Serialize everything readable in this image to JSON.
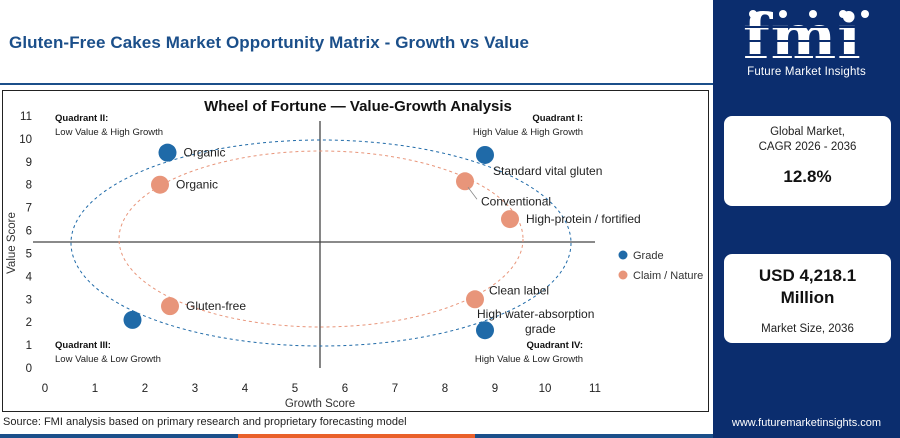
{
  "header": {
    "title": "Gluten-Free Cakes Market Opportunity Matrix - Growth vs Value"
  },
  "brand": {
    "logo_text": "fmi",
    "logo_sub": "Future Market Insights",
    "url": "www.futuremarketinsights.com",
    "color_navy": "#0b2d6e",
    "color_title": "#1b4f8a"
  },
  "side_panel": {
    "cagr_label_1": "Global Market,",
    "cagr_label_2": "CAGR 2026 - 2036",
    "cagr_value": "12.8%",
    "size_value_1": "USD 4,218.1",
    "size_value_2": "Million",
    "size_label": "Market Size, 2036"
  },
  "source": "Source: FMI analysis based on primary research and proprietary forecasting model",
  "chart_data": {
    "type": "scatter",
    "title": "Wheel of Fortune — Value-Growth Analysis",
    "xlabel": "Growth Score",
    "ylabel": "Value Score",
    "xlim": [
      0,
      11
    ],
    "ylim": [
      0,
      11
    ],
    "xticks": [
      "0",
      "1",
      "2",
      "3",
      "4",
      "5",
      "6",
      "7",
      "8",
      "9",
      "10",
      "11"
    ],
    "yticks": [
      "0",
      "1",
      "2",
      "3",
      "4",
      "5",
      "6",
      "7",
      "8",
      "9",
      "10",
      "11"
    ],
    "divider_x": 5.5,
    "divider_y": 5.5,
    "grid": false,
    "legend_position": "right",
    "quadrants": [
      {
        "name": "Quadrant II:",
        "desc": "Low Value & High Growth",
        "position": "top-left"
      },
      {
        "name": "Quadrant I:",
        "desc": "High Value & High Growth",
        "position": "top-right"
      },
      {
        "name": "Quadrant III:",
        "desc": "Low Value & Low Growth",
        "position": "bottom-left"
      },
      {
        "name": "Quadrant IV:",
        "desc": "High Value & Low Growth",
        "position": "bottom-right"
      }
    ],
    "series": [
      {
        "name": "Grade",
        "color": "#1f6aa8",
        "points": [
          {
            "label": "Organic",
            "x": 2.45,
            "y": 9.4
          },
          {
            "label": "Standard vital gluten",
            "x": 8.8,
            "y": 9.3
          },
          {
            "label": "Gluten-free",
            "x": 1.75,
            "y": 2.1
          },
          {
            "label": "High water-absorption grade",
            "x": 8.8,
            "y": 1.65
          }
        ]
      },
      {
        "name": "Claim / Nature",
        "color": "#e8957a",
        "points": [
          {
            "label": "Organic",
            "x": 2.3,
            "y": 8.0
          },
          {
            "label": "Conventional",
            "x": 8.4,
            "y": 8.15
          },
          {
            "label": "High-protein / fortified",
            "x": 9.3,
            "y": 6.5
          },
          {
            "label": "Clean label",
            "x": 8.6,
            "y": 3.0
          },
          {
            "label": "Gluten-free",
            "x": 2.5,
            "y": 2.7
          }
        ]
      }
    ]
  }
}
